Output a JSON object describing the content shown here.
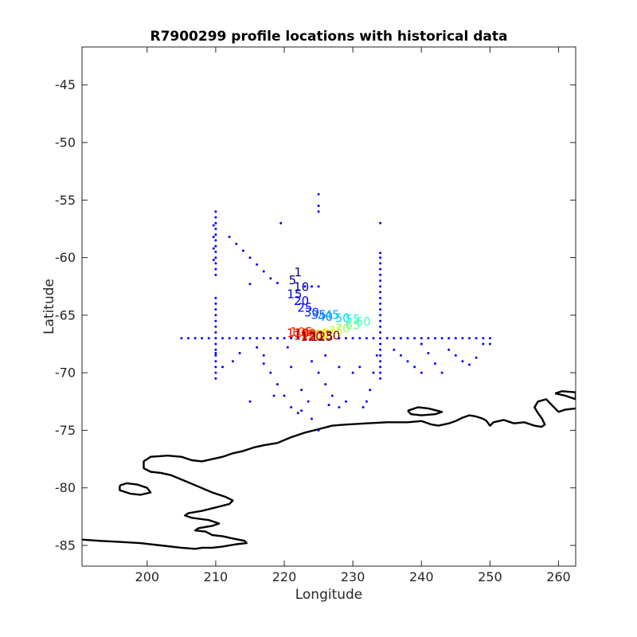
{
  "chart_data": {
    "type": "scatter",
    "title": "R7900299 profile locations with historical data",
    "xlabel": "Longitude",
    "ylabel": "Latitude",
    "xlim": [
      190.5,
      262.5
    ],
    "ylim": [
      -86.8,
      -41.7
    ],
    "xticks": [
      200,
      210,
      220,
      230,
      240,
      250,
      260
    ],
    "yticks": [
      -85,
      -80,
      -75,
      -70,
      -65,
      -60,
      -55,
      -50,
      -45
    ],
    "grid": false,
    "colors": {
      "historical": "#0000ff",
      "coastline": "#000000",
      "axes": "#262626"
    },
    "historical_points": [
      [
        205,
        -67
      ],
      [
        206,
        -67
      ],
      [
        207,
        -67
      ],
      [
        208,
        -67
      ],
      [
        209,
        -67
      ],
      [
        210,
        -67
      ],
      [
        211,
        -67
      ],
      [
        212,
        -67
      ],
      [
        213,
        -67
      ],
      [
        214,
        -67
      ],
      [
        215,
        -67
      ],
      [
        216,
        -67
      ],
      [
        217,
        -67
      ],
      [
        218,
        -67
      ],
      [
        219,
        -67
      ],
      [
        220,
        -67
      ],
      [
        221,
        -67
      ],
      [
        222,
        -67
      ],
      [
        223,
        -67
      ],
      [
        224,
        -67
      ],
      [
        228,
        -67
      ],
      [
        229,
        -67
      ],
      [
        230,
        -67
      ],
      [
        231,
        -67
      ],
      [
        232,
        -67
      ],
      [
        233,
        -67
      ],
      [
        234,
        -67
      ],
      [
        235,
        -67
      ],
      [
        236,
        -67
      ],
      [
        237,
        -67
      ],
      [
        238,
        -67
      ],
      [
        239,
        -67
      ],
      [
        240,
        -67
      ],
      [
        241,
        -67
      ],
      [
        242,
        -67
      ],
      [
        243,
        -67
      ],
      [
        244,
        -67
      ],
      [
        245,
        -67
      ],
      [
        246,
        -67
      ],
      [
        247,
        -67
      ],
      [
        248,
        -67
      ],
      [
        249,
        -67
      ],
      [
        250,
        -67
      ],
      [
        250,
        -67.5
      ],
      [
        210,
        -56
      ],
      [
        210,
        -56.5
      ],
      [
        210,
        -57
      ],
      [
        210,
        -57.5
      ],
      [
        210,
        -58
      ],
      [
        210,
        -58.5
      ],
      [
        210,
        -59
      ],
      [
        210,
        -59.5
      ],
      [
        210,
        -60
      ],
      [
        210,
        -60.5
      ],
      [
        210,
        -61
      ],
      [
        210,
        -61.5
      ],
      [
        209.7,
        -57.2
      ],
      [
        209.7,
        -58.2
      ],
      [
        209.7,
        -59.2
      ],
      [
        209.7,
        -60.2
      ],
      [
        210,
        -63.5
      ],
      [
        210,
        -64
      ],
      [
        210,
        -64.5
      ],
      [
        210,
        -65
      ],
      [
        210,
        -65.5
      ],
      [
        210,
        -66
      ],
      [
        210,
        -66.5
      ],
      [
        210,
        -67.5
      ],
      [
        210,
        -68
      ],
      [
        210,
        -68.5
      ],
      [
        210,
        -69
      ],
      [
        210,
        -69.5
      ],
      [
        210,
        -70
      ],
      [
        210,
        -70.5
      ],
      [
        212,
        -58.2
      ],
      [
        213,
        -58.8
      ],
      [
        214,
        -59.4
      ],
      [
        215,
        -60
      ],
      [
        216,
        -60.6
      ],
      [
        217,
        -61.2
      ],
      [
        218,
        -61.8
      ],
      [
        219,
        -62.2
      ],
      [
        225,
        -54.5
      ],
      [
        225,
        -55.5
      ],
      [
        225,
        -56
      ],
      [
        219.5,
        -57
      ],
      [
        215,
        -62.3
      ],
      [
        223,
        -62.5
      ],
      [
        224,
        -62.5
      ],
      [
        225,
        -62.5
      ],
      [
        234,
        -57
      ],
      [
        234,
        -59.6
      ],
      [
        234,
        -60
      ],
      [
        234,
        -60.5
      ],
      [
        234,
        -61
      ],
      [
        234,
        -61.5
      ],
      [
        234,
        -62
      ],
      [
        234,
        -62.5
      ],
      [
        234,
        -63
      ],
      [
        234,
        -63.5
      ],
      [
        234,
        -64
      ],
      [
        234,
        -64.5
      ],
      [
        234,
        -65
      ],
      [
        234,
        -65.5
      ],
      [
        234,
        -66
      ],
      [
        234,
        -66.5
      ],
      [
        234,
        -67.5
      ],
      [
        234,
        -68
      ],
      [
        234,
        -68.5
      ],
      [
        234,
        -69
      ],
      [
        234,
        -69.5
      ],
      [
        234,
        -70
      ],
      [
        234,
        -70.5
      ],
      [
        233.5,
        -68.5
      ],
      [
        233,
        -70
      ],
      [
        232.5,
        -71.5
      ],
      [
        232,
        -72.5
      ],
      [
        231.5,
        -73
      ],
      [
        210,
        -68.3
      ],
      [
        211,
        -69.5
      ],
      [
        212.5,
        -69
      ],
      [
        213.5,
        -68.3
      ],
      [
        216,
        -67.8
      ],
      [
        217,
        -69.2
      ],
      [
        218,
        -70
      ],
      [
        219,
        -71
      ],
      [
        220,
        -72
      ],
      [
        221,
        -73
      ],
      [
        222,
        -73.5
      ],
      [
        215,
        -72.5
      ],
      [
        217,
        -68.5
      ],
      [
        220.5,
        -67.8
      ],
      [
        221,
        -69.5
      ],
      [
        222.5,
        -71.5
      ],
      [
        223.5,
        -72.5
      ],
      [
        224,
        -74
      ],
      [
        225,
        -75
      ],
      [
        224,
        -69
      ],
      [
        225,
        -70
      ],
      [
        226,
        -71
      ],
      [
        227,
        -72
      ],
      [
        228,
        -73
      ],
      [
        229,
        -72.5
      ],
      [
        226,
        -68.5
      ],
      [
        228,
        -69.5
      ],
      [
        230,
        -70
      ],
      [
        231,
        -69.5
      ],
      [
        236,
        -68
      ],
      [
        237,
        -68.5
      ],
      [
        238,
        -69
      ],
      [
        239,
        -69.5
      ],
      [
        240,
        -70
      ],
      [
        240,
        -67.5
      ],
      [
        241,
        -68.3
      ],
      [
        242,
        -69.2
      ],
      [
        243,
        -70
      ],
      [
        244,
        -68
      ],
      [
        245,
        -68.5
      ],
      [
        246,
        -69
      ],
      [
        247,
        -69.3
      ],
      [
        248,
        -68.7
      ],
      [
        249,
        -67.5
      ],
      [
        226.5,
        -72.8
      ],
      [
        218.5,
        -72
      ],
      [
        222.5,
        -73.3
      ]
    ],
    "float_profiles": [
      {
        "id": "1",
        "lon": 222.0,
        "lat": -61.3,
        "color": "#000080"
      },
      {
        "id": "5",
        "lon": 221.2,
        "lat": -62.0,
        "color": "#00008f"
      },
      {
        "id": "10",
        "lon": 222.5,
        "lat": -62.6,
        "color": "#0000a8"
      },
      {
        "id": "15",
        "lon": 221.5,
        "lat": -63.2,
        "color": "#0000c8"
      },
      {
        "id": "20",
        "lon": 222.5,
        "lat": -63.8,
        "color": "#0000ea"
      },
      {
        "id": "25",
        "lon": 223.0,
        "lat": -64.4,
        "color": "#0008ff"
      },
      {
        "id": "30",
        "lon": 224.0,
        "lat": -64.8,
        "color": "#0030ff"
      },
      {
        "id": "35",
        "lon": 225.0,
        "lat": -65.0,
        "color": "#0060ff"
      },
      {
        "id": "40",
        "lon": 226.0,
        "lat": -65.2,
        "color": "#0088ff"
      },
      {
        "id": "45",
        "lon": 227.0,
        "lat": -65.0,
        "color": "#00b0ff"
      },
      {
        "id": "50",
        "lon": 228.5,
        "lat": -65.3,
        "color": "#00d8ff"
      },
      {
        "id": "55",
        "lon": 230.0,
        "lat": -65.4,
        "color": "#14ffeb"
      },
      {
        "id": "60",
        "lon": 231.5,
        "lat": -65.6,
        "color": "#40ffbf"
      },
      {
        "id": "65",
        "lon": 230.0,
        "lat": -65.9,
        "color": "#6cff93"
      },
      {
        "id": "70",
        "lon": 228.5,
        "lat": -66.2,
        "color": "#98ff67"
      },
      {
        "id": "75",
        "lon": 227.5,
        "lat": -66.4,
        "color": "#c4ff3b"
      },
      {
        "id": "80",
        "lon": 226.5,
        "lat": -66.6,
        "color": "#f0ff0f"
      },
      {
        "id": "85",
        "lon": 225.5,
        "lat": -66.7,
        "color": "#ffd400"
      },
      {
        "id": "90",
        "lon": 224.5,
        "lat": -66.8,
        "color": "#ffa800"
      },
      {
        "id": "95",
        "lon": 223.5,
        "lat": -66.7,
        "color": "#ff7c00"
      },
      {
        "id": "100",
        "lon": 223.0,
        "lat": -66.6,
        "color": "#ff5000"
      },
      {
        "id": "105",
        "lon": 222.5,
        "lat": -66.5,
        "color": "#ff2400"
      },
      {
        "id": "110",
        "lon": 222.0,
        "lat": -66.6,
        "color": "#f00000"
      },
      {
        "id": "115",
        "lon": 223.0,
        "lat": -66.8,
        "color": "#d00000"
      },
      {
        "id": "120",
        "lon": 224.0,
        "lat": -66.9,
        "color": "#b00000"
      },
      {
        "id": "125",
        "lon": 225.5,
        "lat": -66.9,
        "color": "#900000"
      },
      {
        "id": "130",
        "lon": 226.5,
        "lat": -66.8,
        "color": "#800000"
      }
    ],
    "coastline": {
      "main": [
        [
          190.5,
          -84.5
        ],
        [
          193,
          -84.6
        ],
        [
          196,
          -84.7
        ],
        [
          199,
          -84.8
        ],
        [
          202,
          -85.0
        ],
        [
          205,
          -85.2
        ],
        [
          207,
          -85.3
        ],
        [
          208,
          -85.2
        ],
        [
          209.5,
          -85.2
        ],
        [
          211,
          -85.1
        ],
        [
          213,
          -84.9
        ],
        [
          214.5,
          -84.8
        ],
        [
          214.2,
          -84.6
        ],
        [
          212.5,
          -84.4
        ],
        [
          211,
          -84.2
        ],
        [
          209.5,
          -84.1
        ],
        [
          208.5,
          -83.8
        ],
        [
          207,
          -83.7
        ],
        [
          207.5,
          -83.5
        ],
        [
          209.5,
          -83.3
        ],
        [
          210.5,
          -83.1
        ],
        [
          209,
          -82.8
        ],
        [
          206.5,
          -82.6
        ],
        [
          205.5,
          -82.4
        ],
        [
          206,
          -82.2
        ],
        [
          208,
          -82.0
        ],
        [
          210,
          -81.7
        ],
        [
          212,
          -81.4
        ],
        [
          212.5,
          -81.1
        ],
        [
          211.5,
          -80.8
        ],
        [
          209.5,
          -80.4
        ],
        [
          207.5,
          -79.9
        ],
        [
          205.5,
          -79.4
        ],
        [
          203.5,
          -78.9
        ],
        [
          202,
          -78.7
        ],
        [
          200.5,
          -78.6
        ],
        [
          199.5,
          -78.3
        ],
        [
          199.5,
          -77.7
        ],
        [
          200.5,
          -77.3
        ],
        [
          203,
          -77.2
        ],
        [
          205,
          -77.3
        ],
        [
          206.5,
          -77.6
        ],
        [
          208,
          -77.7
        ],
        [
          209.5,
          -77.5
        ],
        [
          211,
          -77.3
        ],
        [
          212.5,
          -77.0
        ],
        [
          214,
          -76.8
        ],
        [
          215.5,
          -76.5
        ],
        [
          217,
          -76.3
        ],
        [
          219,
          -76.1
        ],
        [
          221,
          -75.6
        ],
        [
          223,
          -75.2
        ],
        [
          225,
          -74.9
        ],
        [
          227,
          -74.6
        ],
        [
          229,
          -74.5
        ],
        [
          232,
          -74.4
        ],
        [
          235,
          -74.3
        ],
        [
          238,
          -74.3
        ],
        [
          240,
          -74.2
        ],
        [
          241.5,
          -74.5
        ],
        [
          242.5,
          -74.6
        ],
        [
          244,
          -74.4
        ],
        [
          245,
          -74.2
        ],
        [
          246,
          -73.9
        ],
        [
          247,
          -73.7
        ],
        [
          248,
          -73.8
        ],
        [
          249,
          -74.0
        ],
        [
          249.5,
          -74.2
        ],
        [
          250,
          -74.6
        ],
        [
          250.5,
          -74.3
        ],
        [
          252,
          -74.1
        ],
        [
          253.5,
          -74.4
        ],
        [
          255,
          -74.3
        ],
        [
          256.5,
          -74.6
        ],
        [
          257.5,
          -74.7
        ],
        [
          258,
          -74.5
        ],
        [
          257.6,
          -74.0
        ],
        [
          257,
          -73.5
        ],
        [
          256.5,
          -73.0
        ],
        [
          257,
          -72.5
        ],
        [
          258.2,
          -72.3
        ],
        [
          259,
          -72.8
        ],
        [
          260,
          -73.4
        ],
        [
          261,
          -73.2
        ],
        [
          262.5,
          -73.1
        ]
      ],
      "islands": [
        [
          [
            196,
            -79.8
          ],
          [
            197,
            -79.6
          ],
          [
            198.5,
            -79.7
          ],
          [
            200,
            -80.0
          ],
          [
            200.5,
            -80.4
          ],
          [
            199,
            -80.6
          ],
          [
            197.5,
            -80.5
          ],
          [
            196,
            -80.2
          ],
          [
            196,
            -79.8
          ]
        ],
        [
          [
            238,
            -73.3
          ],
          [
            239.5,
            -73.0
          ],
          [
            241,
            -73.1
          ],
          [
            243,
            -73.4
          ],
          [
            242,
            -73.6
          ],
          [
            240,
            -73.7
          ],
          [
            238.5,
            -73.6
          ],
          [
            238,
            -73.3
          ]
        ],
        [
          [
            259.5,
            -71.8
          ],
          [
            260.5,
            -71.6
          ],
          [
            262.5,
            -71.7
          ],
          [
            262.5,
            -72.3
          ],
          [
            261,
            -72.0
          ],
          [
            259.5,
            -71.8
          ]
        ]
      ]
    }
  }
}
